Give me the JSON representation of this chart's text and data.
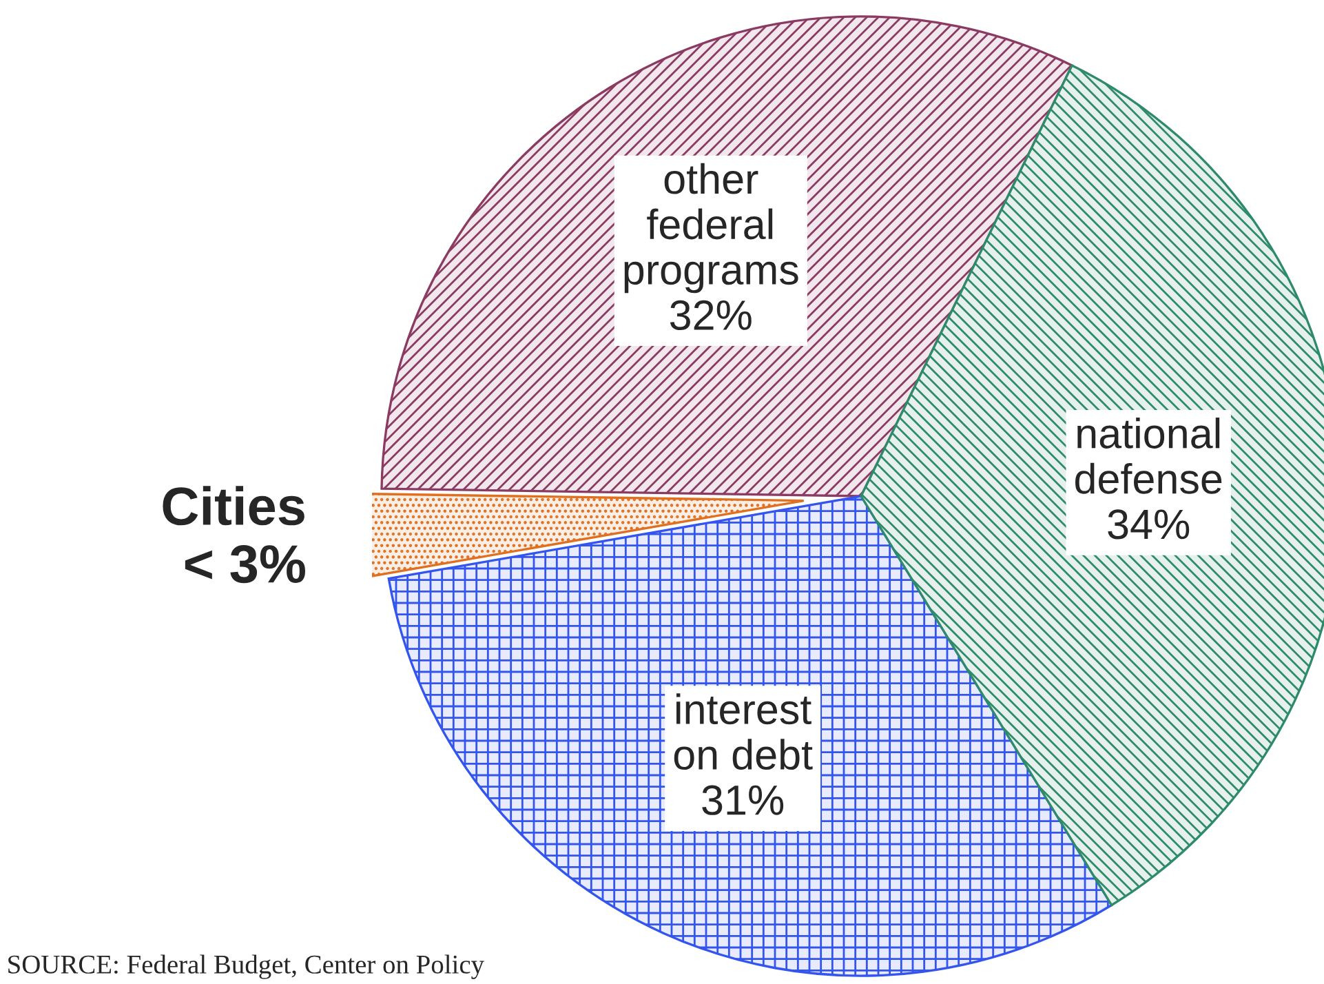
{
  "chart_data": {
    "type": "pie",
    "categories": [
      "other\nfederal\nprograms",
      "Cities",
      "interest\non debt",
      "national\ndefense"
    ],
    "values": [
      32,
      3,
      31,
      34
    ],
    "value_labels": [
      "32%",
      "< 3%",
      "31%",
      "34%"
    ],
    "colors": [
      "#8b3a62",
      "#e07020",
      "#3355ee",
      "#2e8b6a"
    ],
    "annotations": [
      "SOURCE: Federal Budget, Center on Policy"
    ]
  }
}
